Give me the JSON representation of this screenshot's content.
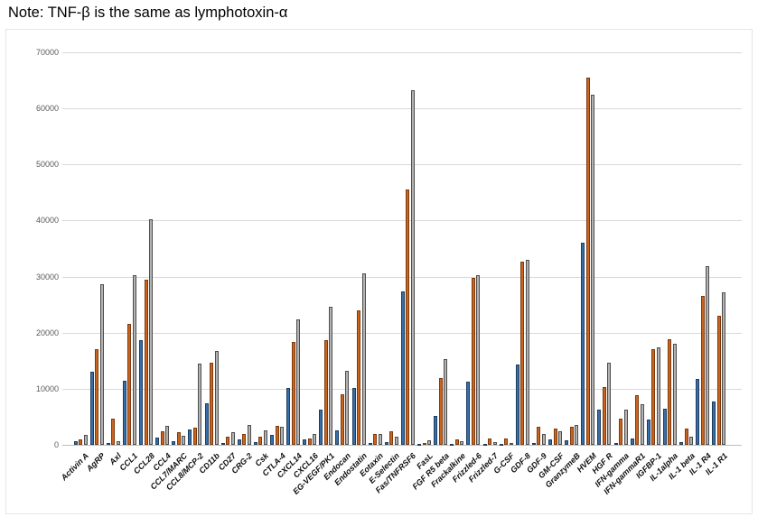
{
  "note": "Note: TNF-β is the same as lymphotoxin-α",
  "chart_data": {
    "type": "bar",
    "title": "",
    "xlabel": "",
    "ylabel": "",
    "ylim": [
      0,
      70000
    ],
    "yticks": [
      0,
      10000,
      20000,
      30000,
      40000,
      50000,
      60000,
      70000
    ],
    "grid": true,
    "legend": "none",
    "categories": [
      "Activin A",
      "AgRP",
      "Axl",
      "CCL1",
      "CCL28",
      "CCL4",
      "CCL7/MARC",
      "CCL8/MCP-2",
      "CD11b",
      "CD27",
      "CRG-2",
      "Csk",
      "CTLA-4",
      "CXCL14",
      "CXCL16",
      "EG-VEGF/PK1",
      "Endocan",
      "Endostatin",
      "Eotaxin",
      "E-Selectin",
      "Fas/TNFRSF6",
      "FasL",
      "FGF R5 beta",
      "Frackalkine",
      "Frizzled-6",
      "Frizzled-7",
      "G-CSF",
      "GDF-8",
      "GDF-9",
      "GM-CSF",
      "GranzymeB",
      "HVEM",
      "HGF R",
      "IFN-gamma",
      "IFN-gammaR1",
      "IGFBP-1",
      "IL-1alpha",
      "IL-1 beta",
      "IL-1 R4",
      "IL-1 R1"
    ],
    "series": [
      {
        "name": "blue",
        "fill_color": "#3a6ea8",
        "border_color": "#1c3d5e",
        "values": [
          650,
          13000,
          300,
          11400,
          18700,
          1300,
          700,
          2800,
          7400,
          400,
          900,
          500,
          1800,
          10100,
          900,
          6300,
          2600,
          10100,
          400,
          500,
          27300,
          200,
          5100,
          200,
          11300,
          200,
          200,
          14300,
          300,
          1000,
          800,
          36000,
          6300,
          300,
          1200,
          4500,
          6500,
          500,
          11700,
          7800
        ]
      },
      {
        "name": "orange",
        "fill_color": "#c9651f",
        "border_color": "#7d3a0e",
        "values": [
          1000,
          17100,
          4600,
          21600,
          29500,
          2400,
          2300,
          3100,
          14600,
          1500,
          2000,
          1400,
          3400,
          18300,
          1100,
          18700,
          9000,
          24000,
          2000,
          2400,
          45500,
          300,
          11900,
          1000,
          29800,
          1100,
          1100,
          32600,
          3200,
          2900,
          3200,
          65500,
          10300,
          4600,
          8900,
          17100,
          18900,
          2900,
          26500,
          23000
        ]
      },
      {
        "name": "gray",
        "fill_color": "#b3b3b3",
        "border_color": "#4d4d4d",
        "values": [
          1800,
          28700,
          600,
          30200,
          40200,
          3300,
          1600,
          14500,
          16800,
          2200,
          3500,
          2600,
          3200,
          22400,
          1900,
          24600,
          13200,
          30500,
          2000,
          1400,
          63200,
          800,
          15300,
          600,
          30300,
          500,
          400,
          33000,
          2000,
          2400,
          3500,
          62400,
          14700,
          6300,
          7200,
          17400,
          18100,
          1400,
          31800,
          27200
        ]
      }
    ]
  }
}
